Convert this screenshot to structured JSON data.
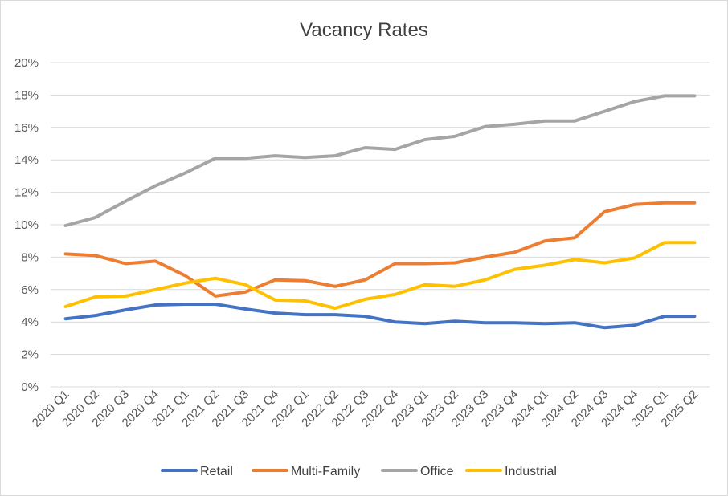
{
  "chart_data": {
    "type": "line",
    "title": "Vacancy Rates",
    "xlabel": "",
    "ylabel": "",
    "ylim": [
      0,
      20
    ],
    "yticks": [
      "0%",
      "2%",
      "4%",
      "6%",
      "8%",
      "10%",
      "12%",
      "14%",
      "16%",
      "18%",
      "20%"
    ],
    "grid": true,
    "legend_position": "bottom",
    "categories": [
      "2020 Q1",
      "2020 Q2",
      "2020 Q3",
      "2020 Q4",
      "2021 Q1",
      "2021 Q2",
      "2021 Q3",
      "2021 Q4",
      "2022 Q1",
      "2022 Q2",
      "2022 Q3",
      "2022 Q4",
      "2023 Q1",
      "2023 Q2",
      "2023 Q3",
      "2023 Q4",
      "2024 Q1",
      "2024 Q2",
      "2024 Q3",
      "2024 Q4",
      "2025 Q1",
      "2025 Q2"
    ],
    "series": [
      {
        "name": "Retail",
        "color": "#4472C4",
        "values": [
          4.2,
          4.4,
          4.75,
          5.05,
          5.1,
          5.1,
          4.8,
          4.55,
          4.45,
          4.45,
          4.35,
          4.0,
          3.9,
          4.05,
          3.95,
          3.95,
          3.9,
          3.95,
          3.65,
          3.8,
          4.35,
          4.35
        ]
      },
      {
        "name": "Multi-Family",
        "color": "#ED7D31",
        "values": [
          8.2,
          8.1,
          7.6,
          7.75,
          6.85,
          5.6,
          5.85,
          6.6,
          6.55,
          6.2,
          6.6,
          7.6,
          7.6,
          7.65,
          8.0,
          8.3,
          9.0,
          9.2,
          10.8,
          11.25,
          11.35,
          11.35
        ]
      },
      {
        "name": "Office",
        "color": "#A5A5A5",
        "values": [
          9.95,
          10.45,
          11.45,
          12.4,
          13.2,
          14.1,
          14.1,
          14.25,
          14.15,
          14.25,
          14.75,
          14.65,
          15.25,
          15.45,
          16.05,
          16.2,
          16.4,
          16.4,
          17.0,
          17.6,
          17.95,
          17.95
        ]
      },
      {
        "name": "Industrial",
        "color": "#FFC000",
        "values": [
          4.95,
          5.55,
          5.6,
          6.0,
          6.4,
          6.7,
          6.3,
          5.35,
          5.3,
          4.85,
          5.4,
          5.7,
          6.3,
          6.2,
          6.6,
          7.25,
          7.5,
          7.85,
          7.65,
          7.95,
          8.9,
          8.9
        ]
      }
    ]
  }
}
